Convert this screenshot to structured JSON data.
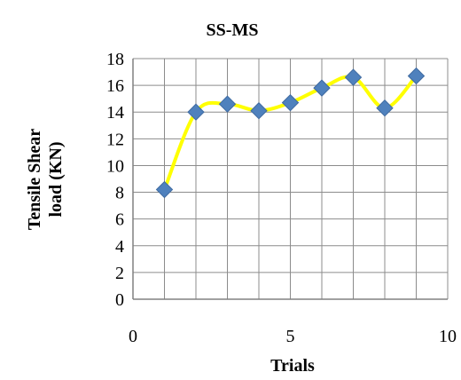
{
  "chart_data": {
    "type": "scatter",
    "title": "SS-MS",
    "xlabel": "Trials",
    "ylabel": [
      "Tensile Shear",
      "load  (KN)"
    ],
    "xlim": [
      0,
      10
    ],
    "ylim": [
      0,
      18
    ],
    "x_ticks": [
      "0",
      "5",
      "10"
    ],
    "y_ticks": [
      "0",
      "2",
      "4",
      "6",
      "8",
      "10",
      "12",
      "14",
      "16",
      "18"
    ],
    "grid": true,
    "legend": "none",
    "series": [
      {
        "line": "smooth",
        "line_color": "#FFFF00",
        "marker": "diamond",
        "marker_color": "#4F81BD",
        "points": [
          {
            "x": 1,
            "y": 8.2
          },
          {
            "x": 2,
            "y": 14.0
          },
          {
            "x": 3,
            "y": 14.6
          },
          {
            "x": 4,
            "y": 14.1
          },
          {
            "x": 5,
            "y": 14.7
          },
          {
            "x": 6,
            "y": 15.8
          },
          {
            "x": 7,
            "y": 16.6
          },
          {
            "x": 8,
            "y": 14.3
          },
          {
            "x": 9,
            "y": 16.7
          }
        ]
      }
    ]
  }
}
